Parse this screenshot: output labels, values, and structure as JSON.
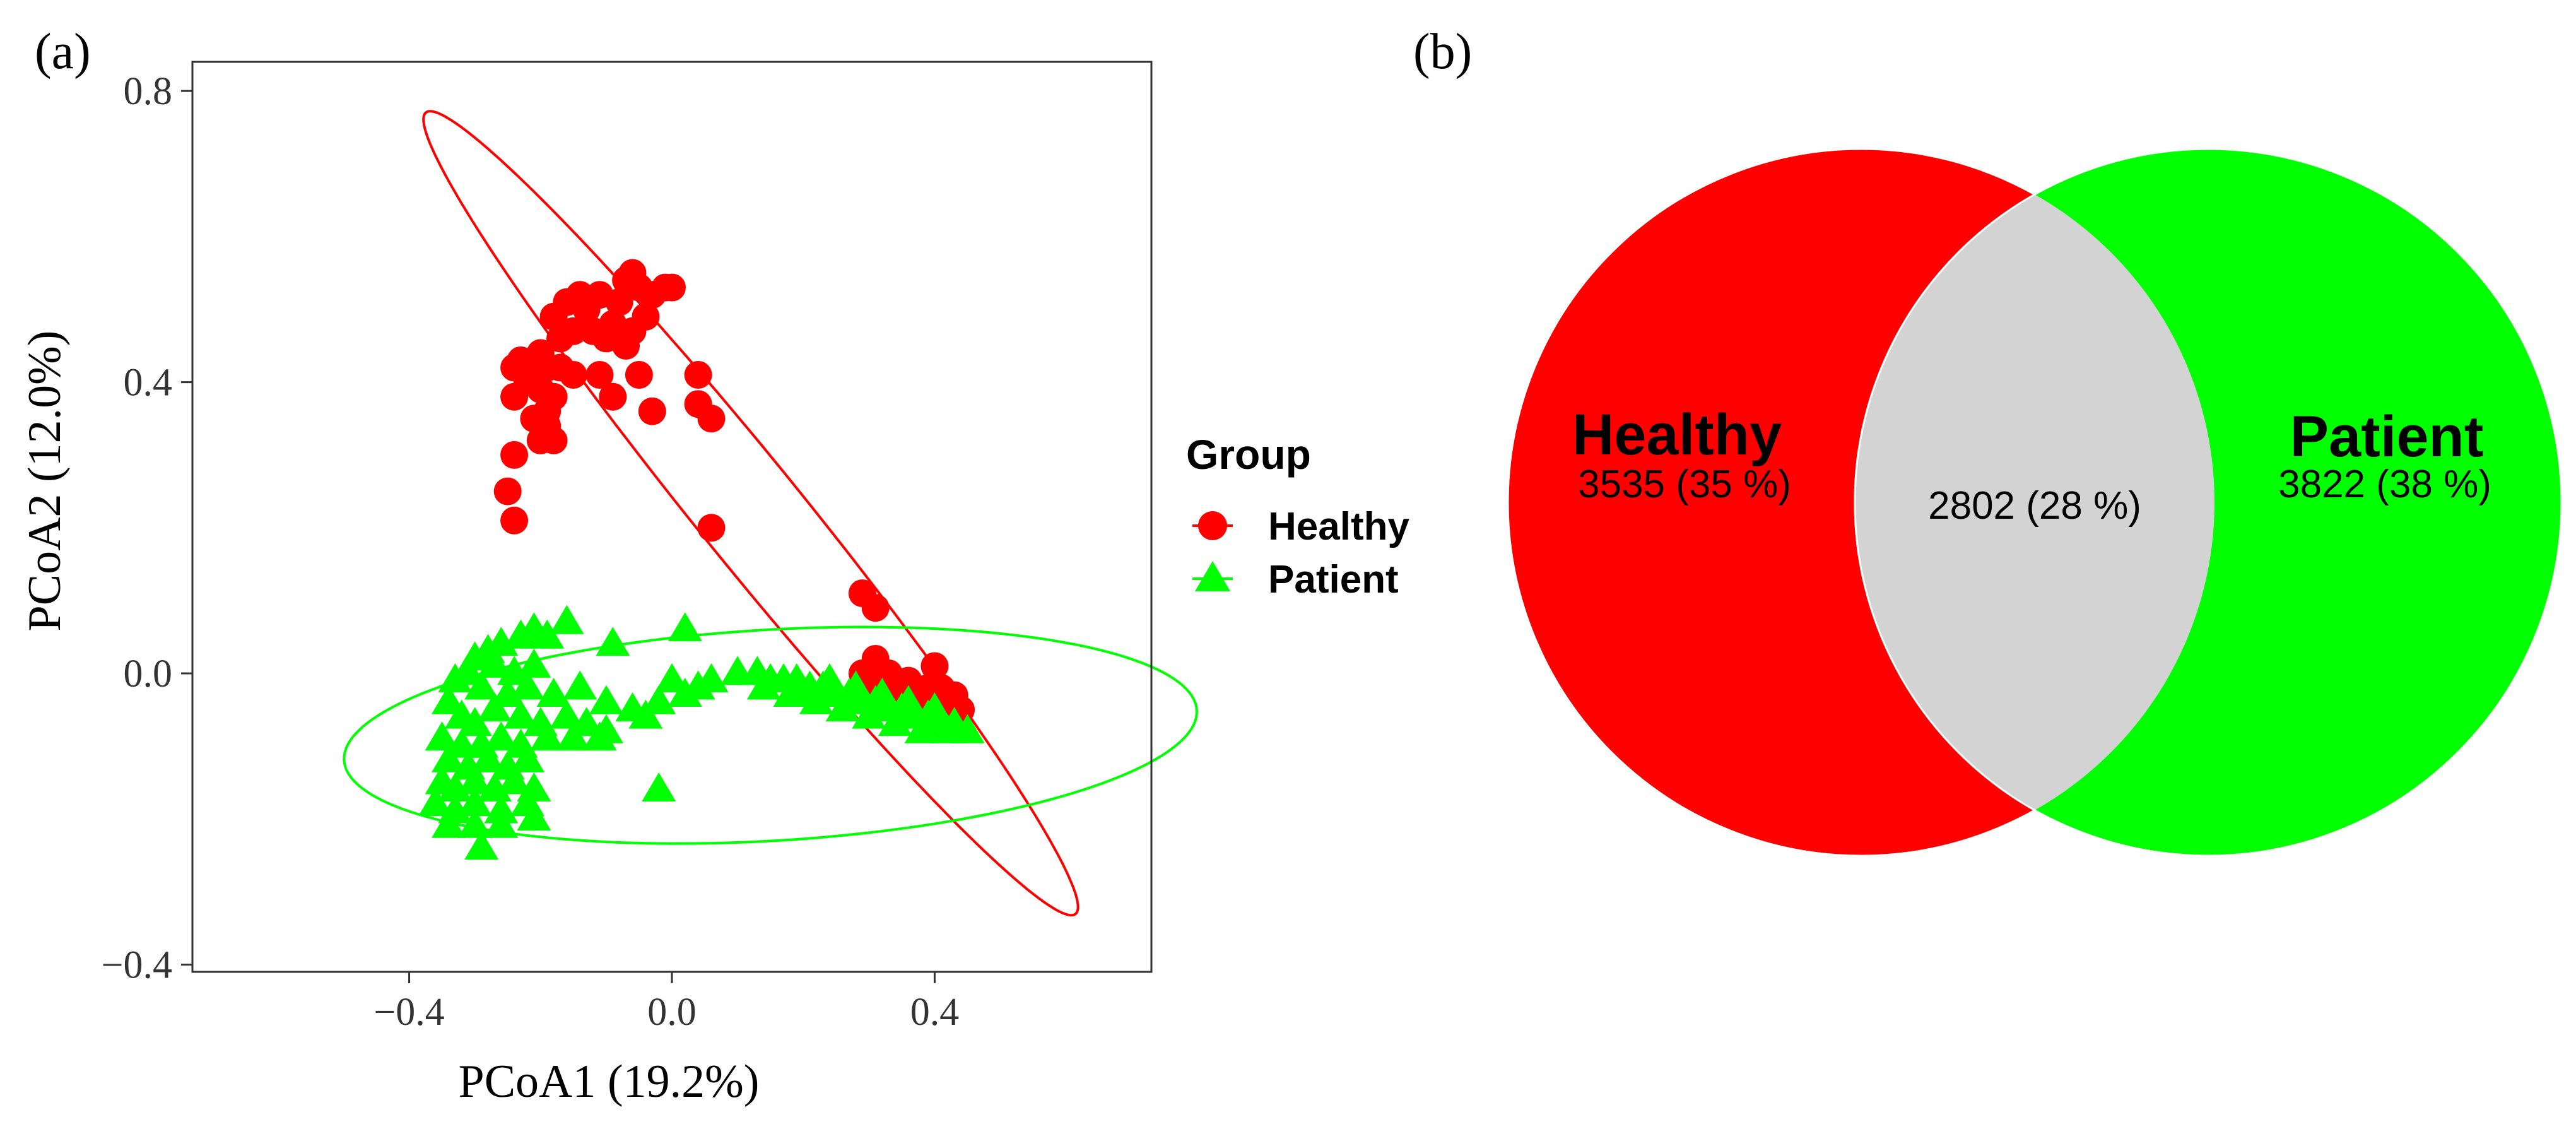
{
  "panels": {
    "a_label": "(a)",
    "b_label": "(b)"
  },
  "colors": {
    "healthy": "#ff0000",
    "patient": "#00ff00",
    "overlap": "#d3d3d3",
    "axis": "#333333"
  },
  "legend": {
    "title": "Group",
    "items": [
      {
        "label": "Healthy",
        "color": "#ff0000",
        "shape": "circle"
      },
      {
        "label": "Patient",
        "color": "#00ff00",
        "shape": "triangle"
      }
    ]
  },
  "venn": {
    "left": {
      "name": "Healthy",
      "count_label": "3535 (35 %)",
      "color": "#ff0000"
    },
    "right": {
      "name": "Patient",
      "count_label": "3822 (38 %)",
      "color": "#00ff00"
    },
    "overlap_label": "2802 (28 %)"
  },
  "chart_data": [
    {
      "type": "scatter",
      "title": "",
      "xlabel": "PCoA1 (19.2%)",
      "ylabel": "PCoA2 (12.0%)",
      "xlim": [
        -0.73,
        0.73
      ],
      "ylim": [
        -0.41,
        0.84
      ],
      "xticks": [
        -0.4,
        0.0,
        0.4
      ],
      "xtick_labels": [
        "−0.4",
        "0.0",
        "0.4"
      ],
      "yticks": [
        -0.4,
        0.0,
        0.4,
        0.8
      ],
      "ytick_labels": [
        "−0.4",
        "0.0",
        "0.4",
        "0.8"
      ],
      "grid": false,
      "legend_position": "right",
      "ellipses": [
        {
          "group": "Healthy",
          "center": [
            0.12,
            0.22
          ],
          "semi_major": 0.74,
          "semi_minor": 0.075,
          "angle_deg": -48
        },
        {
          "group": "Patient",
          "center": [
            0.15,
            -0.085
          ],
          "semi_major": 0.65,
          "semi_minor": 0.145,
          "angle_deg": 3
        }
      ],
      "series": [
        {
          "name": "Healthy",
          "marker": "circle",
          "points": [
            [
              -0.06,
              0.55
            ],
            [
              -0.07,
              0.54
            ],
            [
              -0.05,
              0.53
            ],
            [
              -0.01,
              0.53
            ],
            [
              -0.03,
              0.52
            ],
            [
              0.0,
              0.53
            ],
            [
              -0.11,
              0.52
            ],
            [
              -0.14,
              0.52
            ],
            [
              -0.16,
              0.51
            ],
            [
              -0.13,
              0.5
            ],
            [
              -0.08,
              0.51
            ],
            [
              -0.18,
              0.49
            ],
            [
              -0.12,
              0.47
            ],
            [
              -0.09,
              0.48
            ],
            [
              -0.06,
              0.47
            ],
            [
              -0.04,
              0.49
            ],
            [
              -0.15,
              0.47
            ],
            [
              -0.17,
              0.46
            ],
            [
              -0.1,
              0.46
            ],
            [
              -0.07,
              0.45
            ],
            [
              -0.2,
              0.44
            ],
            [
              -0.21,
              0.43
            ],
            [
              -0.23,
              0.43
            ],
            [
              -0.19,
              0.42
            ],
            [
              -0.24,
              0.42
            ],
            [
              -0.17,
              0.42
            ],
            [
              -0.15,
              0.41
            ],
            [
              -0.22,
              0.4
            ],
            [
              -0.11,
              0.41
            ],
            [
              -0.05,
              0.41
            ],
            [
              0.04,
              0.41
            ],
            [
              -0.2,
              0.39
            ],
            [
              -0.18,
              0.38
            ],
            [
              -0.24,
              0.38
            ],
            [
              -0.09,
              0.38
            ],
            [
              -0.19,
              0.36
            ],
            [
              -0.21,
              0.35
            ],
            [
              0.04,
              0.37
            ],
            [
              0.06,
              0.35
            ],
            [
              -0.03,
              0.36
            ],
            [
              -0.19,
              0.34
            ],
            [
              -0.2,
              0.32
            ],
            [
              -0.18,
              0.32
            ],
            [
              -0.24,
              0.3
            ],
            [
              -0.25,
              0.25
            ],
            [
              -0.24,
              0.21
            ],
            [
              0.06,
              0.2
            ],
            [
              0.29,
              0.11
            ],
            [
              0.31,
              0.09
            ],
            [
              0.31,
              0.02
            ],
            [
              0.29,
              0.0
            ],
            [
              0.33,
              0.0
            ],
            [
              0.34,
              -0.01
            ],
            [
              0.36,
              -0.01
            ],
            [
              0.37,
              -0.02
            ],
            [
              0.39,
              -0.02
            ],
            [
              0.41,
              -0.02
            ],
            [
              0.43,
              -0.03
            ],
            [
              0.4,
              0.01
            ],
            [
              0.42,
              -0.04
            ],
            [
              0.44,
              -0.05
            ],
            [
              0.35,
              -0.03
            ],
            [
              0.38,
              -0.04
            ],
            [
              0.33,
              -0.02
            ],
            [
              0.3,
              -0.01
            ]
          ]
        },
        {
          "name": "Patient",
          "marker": "triangle",
          "points": [
            [
              -0.16,
              0.07
            ],
            [
              -0.21,
              0.06
            ],
            [
              -0.23,
              0.05
            ],
            [
              -0.26,
              0.04
            ],
            [
              -0.19,
              0.05
            ],
            [
              0.02,
              0.06
            ],
            [
              -0.09,
              0.04
            ],
            [
              -0.28,
              0.03
            ],
            [
              -0.3,
              0.02
            ],
            [
              -0.27,
              0.01
            ],
            [
              -0.24,
              0.0
            ],
            [
              -0.21,
              0.01
            ],
            [
              -0.31,
              0.0
            ],
            [
              -0.33,
              -0.01
            ],
            [
              -0.29,
              -0.02
            ],
            [
              -0.25,
              -0.03
            ],
            [
              -0.22,
              -0.02
            ],
            [
              -0.18,
              -0.03
            ],
            [
              -0.14,
              -0.02
            ],
            [
              -0.1,
              -0.04
            ],
            [
              -0.06,
              -0.05
            ],
            [
              -0.04,
              -0.06
            ],
            [
              0.0,
              -0.01
            ],
            [
              0.04,
              -0.02
            ],
            [
              0.06,
              -0.01
            ],
            [
              -0.02,
              -0.04
            ],
            [
              0.02,
              -0.03
            ],
            [
              -0.34,
              -0.04
            ],
            [
              -0.32,
              -0.06
            ],
            [
              -0.3,
              -0.07
            ],
            [
              -0.27,
              -0.05
            ],
            [
              -0.23,
              -0.06
            ],
            [
              -0.2,
              -0.07
            ],
            [
              -0.16,
              -0.06
            ],
            [
              -0.13,
              -0.07
            ],
            [
              -0.1,
              -0.08
            ],
            [
              -0.35,
              -0.09
            ],
            [
              -0.32,
              -0.1
            ],
            [
              -0.29,
              -0.1
            ],
            [
              -0.26,
              -0.09
            ],
            [
              -0.23,
              -0.1
            ],
            [
              -0.19,
              -0.09
            ],
            [
              -0.15,
              -0.09
            ],
            [
              -0.11,
              -0.09
            ],
            [
              -0.34,
              -0.12
            ],
            [
              -0.31,
              -0.13
            ],
            [
              -0.28,
              -0.12
            ],
            [
              -0.25,
              -0.13
            ],
            [
              -0.22,
              -0.12
            ],
            [
              -0.35,
              -0.15
            ],
            [
              -0.33,
              -0.16
            ],
            [
              -0.3,
              -0.15
            ],
            [
              -0.27,
              -0.16
            ],
            [
              -0.24,
              -0.15
            ],
            [
              -0.21,
              -0.16
            ],
            [
              -0.36,
              -0.18
            ],
            [
              -0.33,
              -0.19
            ],
            [
              -0.3,
              -0.18
            ],
            [
              -0.26,
              -0.19
            ],
            [
              -0.22,
              -0.18
            ],
            [
              -0.34,
              -0.21
            ],
            [
              -0.3,
              -0.21
            ],
            [
              -0.26,
              -0.21
            ],
            [
              -0.21,
              -0.2
            ],
            [
              -0.29,
              -0.24
            ],
            [
              -0.02,
              -0.16
            ],
            [
              0.1,
              0.0
            ],
            [
              0.13,
              0.0
            ],
            [
              0.15,
              -0.01
            ],
            [
              0.17,
              -0.01
            ],
            [
              0.19,
              -0.01
            ],
            [
              0.21,
              -0.02
            ],
            [
              0.23,
              -0.02
            ],
            [
              0.25,
              -0.03
            ],
            [
              0.27,
              -0.03
            ],
            [
              0.29,
              -0.04
            ],
            [
              0.31,
              -0.04
            ],
            [
              0.33,
              -0.05
            ],
            [
              0.35,
              -0.05
            ],
            [
              0.37,
              -0.06
            ],
            [
              0.39,
              -0.06
            ],
            [
              0.41,
              -0.07
            ],
            [
              0.43,
              -0.07
            ],
            [
              0.45,
              -0.08
            ],
            [
              0.3,
              -0.06
            ],
            [
              0.26,
              -0.05
            ],
            [
              0.22,
              -0.04
            ],
            [
              0.34,
              -0.07
            ],
            [
              0.38,
              -0.08
            ],
            [
              0.42,
              -0.08
            ],
            [
              0.18,
              -0.03
            ],
            [
              0.14,
              -0.02
            ],
            [
              0.28,
              -0.02
            ],
            [
              0.36,
              -0.04
            ],
            [
              0.4,
              -0.05
            ],
            [
              0.2,
              -0.03
            ],
            [
              0.24,
              -0.01
            ],
            [
              0.32,
              -0.03
            ]
          ]
        }
      ]
    },
    {
      "type": "venn",
      "sets": [
        {
          "name": "Healthy",
          "unique": 3535,
          "unique_pct": 35
        },
        {
          "name": "Patient",
          "unique": 3822,
          "unique_pct": 38
        }
      ],
      "intersection": {
        "sets": [
          "Healthy",
          "Patient"
        ],
        "value": 2802,
        "pct": 28
      }
    }
  ]
}
